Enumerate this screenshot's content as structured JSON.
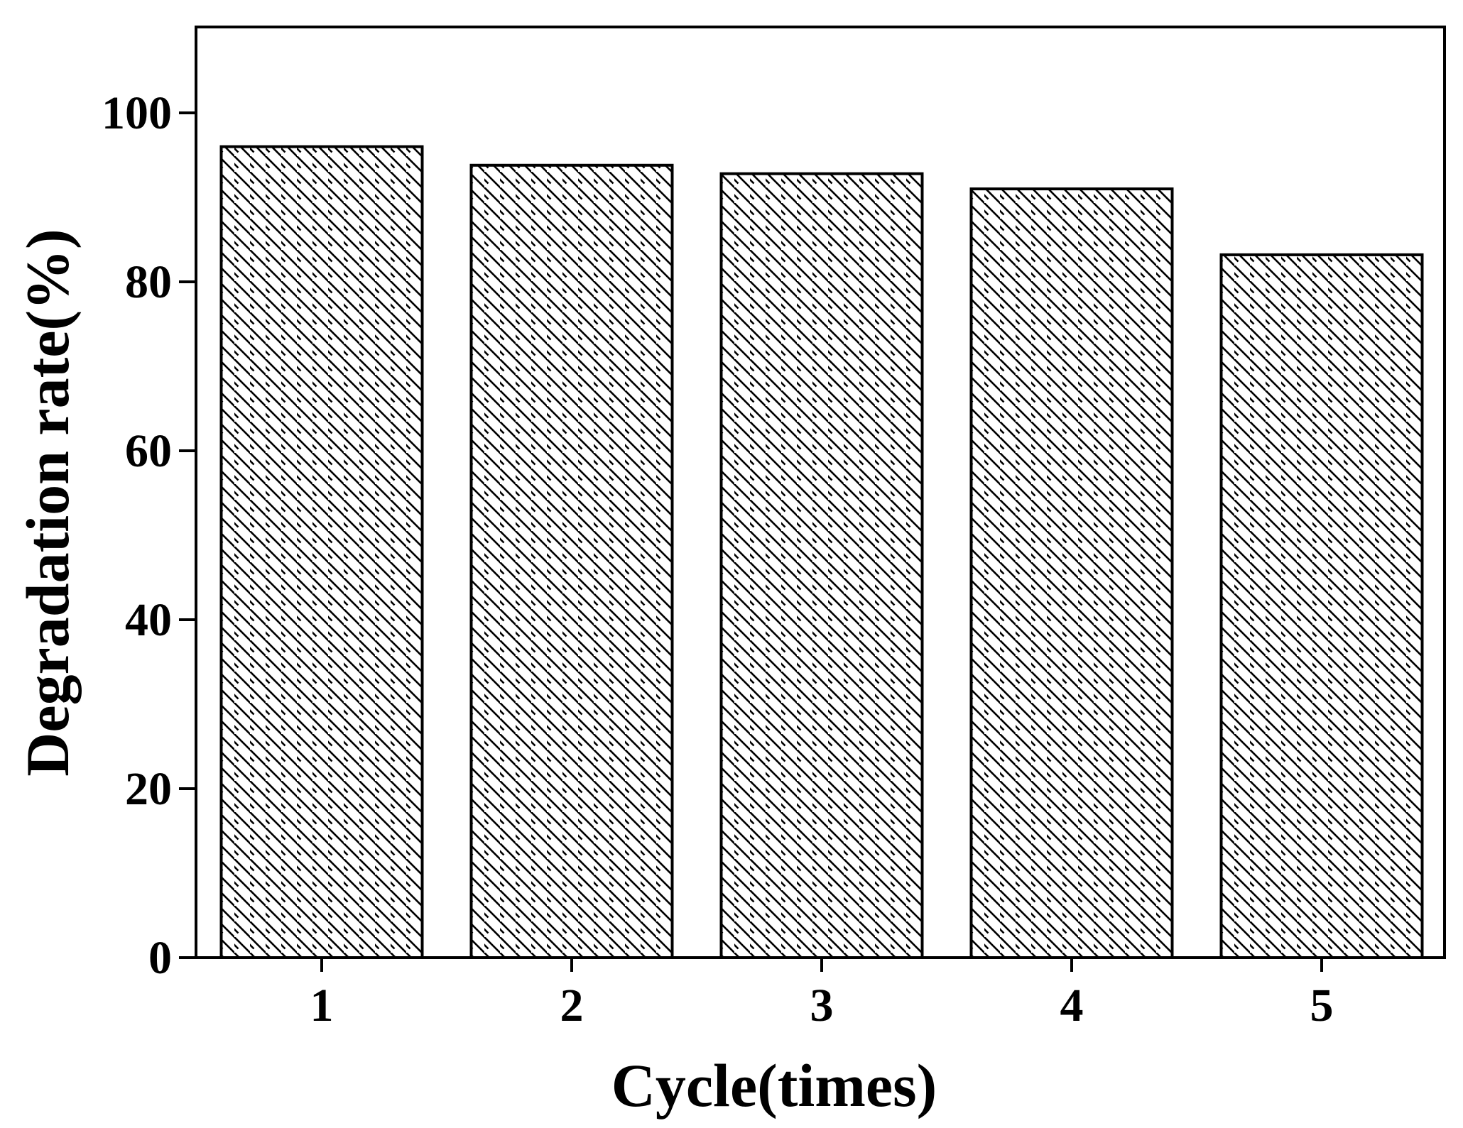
{
  "chart_data": {
    "type": "bar",
    "title": "",
    "xlabel": "Cycle(times)",
    "ylabel": "Degradation rate(%)",
    "categories": [
      "1",
      "2",
      "3",
      "4",
      "5"
    ],
    "values": [
      96,
      93.8,
      92.8,
      91,
      83.2
    ],
    "ylim": [
      0,
      110
    ],
    "yticks": [
      0,
      20,
      40,
      60,
      80,
      100
    ],
    "grid": false,
    "legend": "none",
    "bar_fill": "hatched",
    "colors": {
      "stroke": "#000000",
      "background": "#ffffff",
      "hatch": "#000000"
    }
  }
}
